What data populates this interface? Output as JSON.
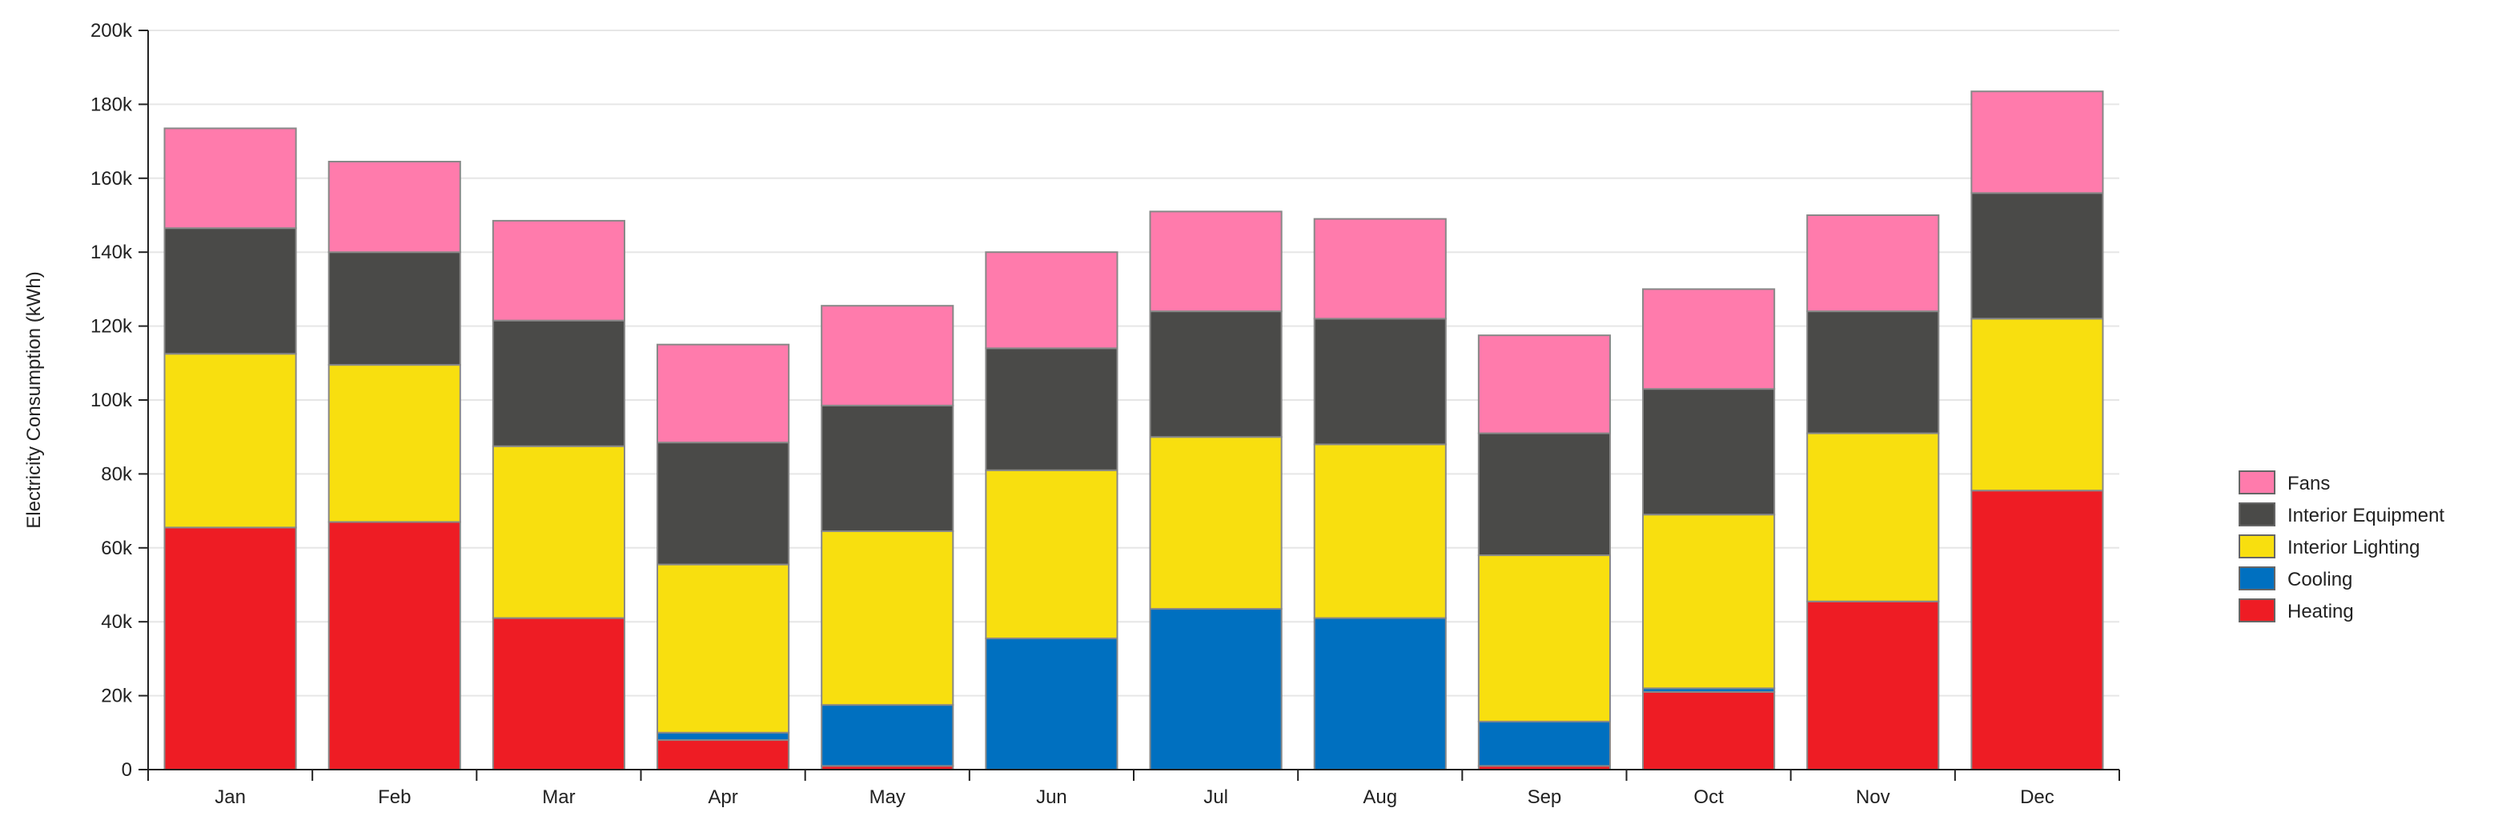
{
  "chart_data": {
    "type": "bar",
    "stacked": true,
    "title": "",
    "xlabel": "",
    "ylabel": "Electricity Consumption (kWh)",
    "ylim": [
      0,
      200000
    ],
    "yticks": [
      0,
      20000,
      40000,
      60000,
      80000,
      100000,
      120000,
      140000,
      160000,
      180000,
      200000
    ],
    "ytick_labels": [
      "0",
      "20k",
      "40k",
      "60k",
      "80k",
      "100k",
      "120k",
      "140k",
      "160k",
      "180k",
      "200k"
    ],
    "grid": true,
    "legend_position": "right",
    "categories": [
      "Jan",
      "Feb",
      "Mar",
      "Apr",
      "May",
      "Jun",
      "Jul",
      "Aug",
      "Sep",
      "Oct",
      "Nov",
      "Dec"
    ],
    "series": [
      {
        "name": "Heating",
        "color": "#ee1c24",
        "values": [
          65500,
          67000,
          41000,
          8000,
          1000,
          0,
          0,
          0,
          1000,
          21000,
          45500,
          75500
        ]
      },
      {
        "name": "Cooling",
        "color": "#0070c0",
        "values": [
          0,
          0,
          0,
          2000,
          16500,
          35500,
          43500,
          41000,
          12000,
          1000,
          0,
          0
        ]
      },
      {
        "name": "Interior Lighting",
        "color": "#f8df0f",
        "values": [
          47000,
          42500,
          46500,
          45500,
          47000,
          45500,
          46500,
          47000,
          45000,
          47000,
          45500,
          46500
        ]
      },
      {
        "name": "Interior Equipment",
        "color": "#4a4a48",
        "values": [
          34000,
          30500,
          34000,
          33000,
          34000,
          33000,
          34000,
          34000,
          33000,
          34000,
          33000,
          34000
        ]
      },
      {
        "name": "Fans",
        "color": "#ff7bac",
        "values": [
          27000,
          24500,
          27000,
          26500,
          27000,
          26000,
          27000,
          27000,
          26500,
          27000,
          26000,
          27500
        ]
      }
    ],
    "legend_order": [
      "Fans",
      "Interior Equipment",
      "Interior Lighting",
      "Cooling",
      "Heating"
    ],
    "colors": {
      "gridline": "#e6e6e6",
      "axis": "#222222",
      "bar_stroke": "#888888"
    }
  }
}
